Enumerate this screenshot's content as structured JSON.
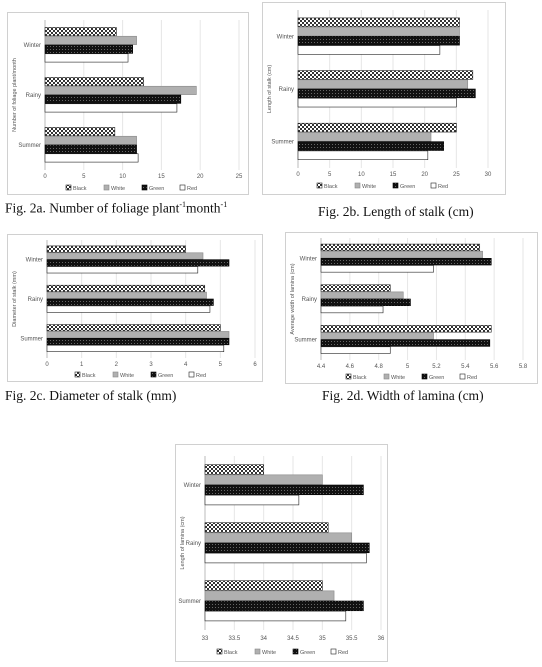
{
  "chart_data": [
    {
      "id": "2a",
      "type": "bar",
      "orientation": "horizontal",
      "caption": "Fig. 2a. Number of foliage plant",
      "caption_sup1": "-1",
      "caption_mid": "month",
      "caption_sup2": "-1",
      "ylabel": "Number of foliage plant/month",
      "categories": [
        "Winter",
        "Rainy",
        "Summer"
      ],
      "xlim": [
        0,
        25
      ],
      "xticks": [
        "0",
        "5",
        "10",
        "15",
        "20",
        "25"
      ],
      "series": [
        {
          "name": "Black",
          "values": [
            9.2,
            12.7,
            9.0
          ]
        },
        {
          "name": "White",
          "values": [
            11.8,
            19.5,
            11.8
          ]
        },
        {
          "name": "Green",
          "values": [
            11.3,
            17.5,
            11.8
          ]
        },
        {
          "name": "Red",
          "values": [
            10.7,
            17.0,
            12.0
          ]
        }
      ]
    },
    {
      "id": "2b",
      "type": "bar",
      "orientation": "horizontal",
      "caption": "Fig. 2b. Length of stalk (cm)",
      "ylabel": "Length of stalk (cm)",
      "categories": [
        "Winter",
        "Rainy",
        "Summer"
      ],
      "xlim": [
        0,
        30
      ],
      "xticks": [
        "0",
        "5",
        "10",
        "15",
        "20",
        "25",
        "30"
      ],
      "series": [
        {
          "name": "Black",
          "values": [
            25.5,
            27.6,
            25.0
          ]
        },
        {
          "name": "White",
          "values": [
            25.5,
            26.8,
            21.0
          ]
        },
        {
          "name": "Green",
          "values": [
            25.5,
            28.0,
            23.0
          ]
        },
        {
          "name": "Red",
          "values": [
            22.4,
            25.0,
            20.5
          ]
        }
      ]
    },
    {
      "id": "2c",
      "type": "bar",
      "orientation": "horizontal",
      "caption": "Fig. 2c. Diameter of stalk (mm)",
      "ylabel": "Diameter of stalk (mm)",
      "categories": [
        "Winter",
        "Rainy",
        "Summer"
      ],
      "xlim": [
        0,
        6
      ],
      "xticks": [
        "0",
        "1",
        "2",
        "3",
        "4",
        "5",
        "6"
      ],
      "series": [
        {
          "name": "Black",
          "values": [
            4.0,
            4.55,
            5.0
          ]
        },
        {
          "name": "White",
          "values": [
            4.5,
            4.6,
            5.25
          ]
        },
        {
          "name": "Green",
          "values": [
            5.25,
            4.8,
            5.25
          ]
        },
        {
          "name": "Red",
          "values": [
            4.35,
            4.7,
            5.1
          ]
        }
      ]
    },
    {
      "id": "2d",
      "type": "bar",
      "orientation": "horizontal",
      "caption": "Fig. 2d. Width of lamina (cm)",
      "ylabel": "Average width of lamina (cm)",
      "categories": [
        "Winter",
        "Rainy",
        "Summer"
      ],
      "xlim": [
        4.4,
        5.8
      ],
      "xticks": [
        "4.4",
        "4.6",
        "4.8",
        "5",
        "5.2",
        "5.4",
        "5.6",
        "5.8"
      ],
      "series": [
        {
          "name": "Black",
          "values": [
            5.5,
            4.88,
            5.58
          ]
        },
        {
          "name": "White",
          "values": [
            5.52,
            4.97,
            5.18
          ]
        },
        {
          "name": "Green",
          "values": [
            5.58,
            5.02,
            5.57
          ]
        },
        {
          "name": "Red",
          "values": [
            5.18,
            4.83,
            4.88
          ]
        }
      ]
    },
    {
      "id": "2e",
      "type": "bar",
      "orientation": "horizontal",
      "caption": "",
      "ylabel": "Length of lamina (cm)",
      "categories": [
        "Winter",
        "Rainy",
        "Summer"
      ],
      "xlim": [
        33,
        36
      ],
      "xticks": [
        "33",
        "33.5",
        "34",
        "34.5",
        "35",
        "35.5",
        "36"
      ],
      "series": [
        {
          "name": "Black",
          "values": [
            34.0,
            35.1,
            35.0
          ]
        },
        {
          "name": "White",
          "values": [
            35.0,
            35.5,
            35.2
          ]
        },
        {
          "name": "Green",
          "values": [
            35.7,
            35.8,
            35.7
          ]
        },
        {
          "name": "Red",
          "values": [
            34.6,
            35.75,
            35.4
          ]
        }
      ]
    }
  ]
}
